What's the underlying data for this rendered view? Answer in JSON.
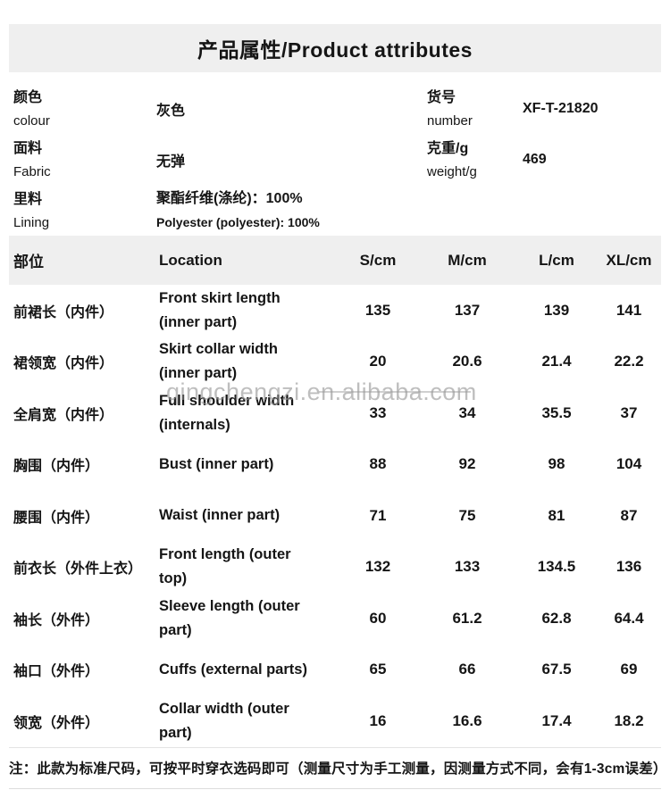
{
  "page": {
    "title": "产品属性/Product attributes"
  },
  "attribute_rows": [
    {
      "left": {
        "label_zh": "颜色",
        "label_en": "colour",
        "value": "灰色"
      },
      "right": {
        "label_zh": "货号",
        "label_en": "number",
        "value": "XF-T-21820"
      }
    },
    {
      "left": {
        "label_zh": "面料",
        "label_en": "Fabric",
        "value": "无弹"
      },
      "right": {
        "label_zh": "克重/g",
        "label_en": "weight/g",
        "value": "469"
      }
    },
    {
      "left": {
        "label_zh": "里料",
        "label_en": "Lining",
        "value_zh": "聚酯纤维(涤纶)：100%",
        "value_en": "Polyester (polyester): 100%"
      }
    }
  ],
  "size_table": {
    "headers": {
      "part": "部位",
      "location": "Location",
      "s": "S/cm",
      "m": "M/cm",
      "l": "L/cm",
      "xl": "XL/cm"
    },
    "rows": [
      {
        "part": "前裙长（内件）",
        "location": "Front skirt length (inner part)",
        "s": "135",
        "m": "137",
        "l": "139",
        "xl": "141"
      },
      {
        "part": "裙领宽（内件）",
        "location": "Skirt collar width (inner part)",
        "s": "20",
        "m": "20.6",
        "l": "21.4",
        "xl": "22.2"
      },
      {
        "part": "全肩宽（内件）",
        "location": "Full shoulder width (internals)",
        "s": "33",
        "m": "34",
        "l": "35.5",
        "xl": "37"
      },
      {
        "part": "胸围（内件）",
        "location": "Bust (inner part)",
        "s": "88",
        "m": "92",
        "l": "98",
        "xl": "104"
      },
      {
        "part": "腰围（内件）",
        "location": "Waist (inner part)",
        "s": "71",
        "m": "75",
        "l": "81",
        "xl": "87"
      },
      {
        "part": "前衣长（外件上衣）",
        "location": "Front length (outer top)",
        "s": "132",
        "m": "133",
        "l": "134.5",
        "xl": "136"
      },
      {
        "part": "袖长（外件）",
        "location": "Sleeve length (outer part)",
        "s": "60",
        "m": "61.2",
        "l": "62.8",
        "xl": "64.4"
      },
      {
        "part": "袖口（外件）",
        "location": "Cuffs (external parts)",
        "s": "65",
        "m": "66",
        "l": "67.5",
        "xl": "69"
      },
      {
        "part": "领宽（外件）",
        "location": "Collar width (outer part)",
        "s": "16",
        "m": "16.6",
        "l": "17.4",
        "xl": "18.2"
      }
    ]
  },
  "watermark": "qingchengzi.en.alibaba.com",
  "footnote": "注：此款为标准尺码，可按平时穿衣选码即可（测量尺寸为手工测量，因测量方式不同，会有1-3cm误差）",
  "colors": {
    "header_bg": "#efefef",
    "text": "#151515",
    "watermark": "#969696"
  }
}
